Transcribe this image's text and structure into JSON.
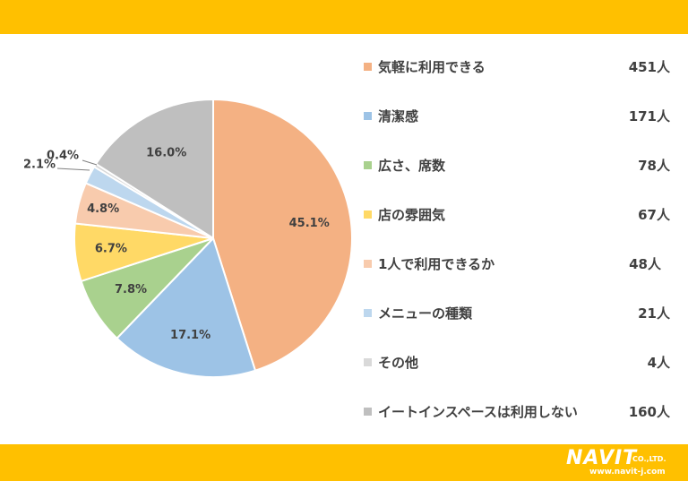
{
  "chart_data": {
    "type": "pie",
    "title": "",
    "slices": [
      {
        "label": "気軽に利用できる",
        "count": "451人",
        "percent": 45.1,
        "percent_label": "45.1%",
        "color": "#F4B183"
      },
      {
        "label": "清潔感",
        "count": "171人",
        "percent": 17.1,
        "percent_label": "17.1%",
        "color": "#9DC3E6"
      },
      {
        "label": "広さ、席数",
        "count": "78人",
        "percent": 7.8,
        "percent_label": "7.8%",
        "color": "#A9D18E"
      },
      {
        "label": "店の雰囲気",
        "count": "67人",
        "percent": 6.7,
        "percent_label": "6.7%",
        "color": "#FFD966"
      },
      {
        "label": "1人で利用できるか",
        "count": "48人",
        "percent": 4.8,
        "percent_label": "4.8%",
        "color": "#F8CBAD"
      },
      {
        "label": "メニューの種類",
        "count": "21人",
        "percent": 2.1,
        "percent_label": "2.1%",
        "color": "#BDD7EE"
      },
      {
        "label": "その他",
        "count": "4人",
        "percent": 0.4,
        "percent_label": "0.4%",
        "color": "#D9D9D9"
      },
      {
        "label": "イートインスペースは利用しない",
        "count": "160人",
        "percent": 16.0,
        "percent_label": "16.0%",
        "color": "#BFBFBF"
      }
    ],
    "legend_position": "right"
  },
  "branding": {
    "logo_text": "NAVIT",
    "company_suffix": "CO.,LTD.",
    "url": "www.navit-j.com"
  },
  "colors": {
    "band": "#FFC000",
    "text": "#404040"
  }
}
